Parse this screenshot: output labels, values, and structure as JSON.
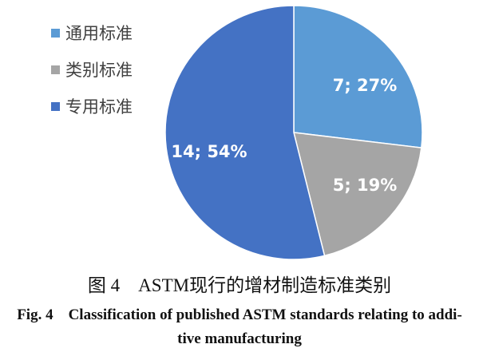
{
  "chart_data": {
    "type": "pie",
    "start": "top, clockwise",
    "categories": [
      "通用标准",
      "类别标准",
      "专用标准"
    ],
    "values": [
      7,
      5,
      14
    ],
    "percents": [
      27,
      19,
      54
    ],
    "data_labels": [
      "7; 27%",
      "5; 19%",
      "14; 54%"
    ],
    "colors": [
      "#5b9bd5",
      "#a5a5a5",
      "#4472c4"
    ],
    "legend_placement": "top-left"
  },
  "caption": {
    "zh": "图 4　ASTM现行的增材制造标准类别",
    "en_line1": "Fig. 4　Classification of published ASTM standards relating to addi-",
    "en_line2": "tive manufacturing"
  }
}
